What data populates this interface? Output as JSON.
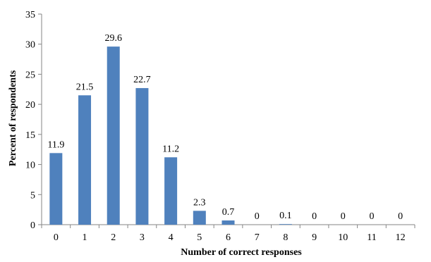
{
  "chart_data": {
    "type": "bar",
    "categories": [
      "0",
      "1",
      "2",
      "3",
      "4",
      "5",
      "6",
      "7",
      "8",
      "9",
      "10",
      "11",
      "12"
    ],
    "values": [
      11.9,
      21.5,
      29.6,
      22.7,
      11.2,
      2.3,
      0.7,
      0,
      0.1,
      0,
      0,
      0,
      0
    ],
    "data_labels": [
      "11.9",
      "21.5",
      "29.6",
      "22.7",
      "11.2",
      "2.3",
      "0.7",
      "0",
      "0.1",
      "0",
      "0",
      "0",
      "0"
    ],
    "title": "",
    "xlabel": "Number of correct responses",
    "ylabel": "Percent of respondents",
    "ylim": [
      0,
      35
    ],
    "yticks": [
      "0",
      "5",
      "10",
      "15",
      "20",
      "25",
      "30",
      "35"
    ],
    "grid": false,
    "legend": "none",
    "bar_color": "#4F81BD"
  }
}
